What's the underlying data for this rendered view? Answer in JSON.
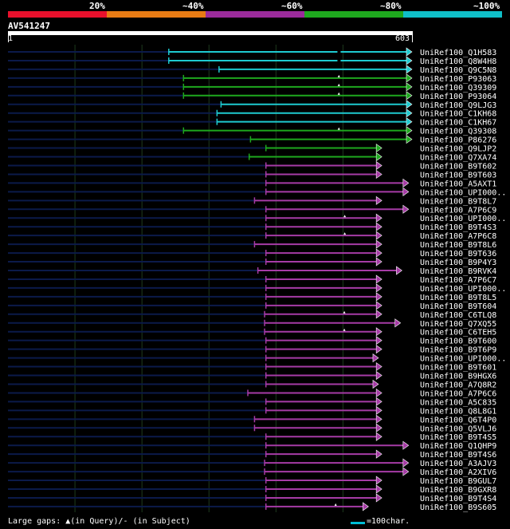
{
  "legend": {
    "segments": [
      {
        "color": "#e8102c"
      },
      {
        "color": "#e87b14"
      },
      {
        "color": "#9b2b9b"
      },
      {
        "color": "#1ea81e"
      },
      {
        "color": "#0fbfc8"
      }
    ],
    "labels": [
      "20%",
      "~40%",
      "~60%",
      "~80%",
      "~100%"
    ]
  },
  "query": {
    "name": "AV541247",
    "start": "1",
    "end": "603",
    "length": 603
  },
  "colors": {
    "cyan": "#1ecad0",
    "green": "#1ea81e",
    "purple": "#a63ba6",
    "dark": "#0b1a4a",
    "grid": "#1d3a1d"
  },
  "hits": [
    {
      "label": "UniRef100_Q1H583",
      "color": "cyan",
      "s": 240,
      "e": 603,
      "gap": "-"
    },
    {
      "label": "UniRef100_Q8W4H8",
      "color": "cyan",
      "s": 240,
      "e": 603,
      "gap": "-"
    },
    {
      "label": "UniRef100_Q9C5N8",
      "color": "cyan",
      "s": 315,
      "e": 603,
      "gap": ""
    },
    {
      "label": "UniRef100_P93063",
      "color": "green",
      "s": 262,
      "e": 603,
      "gap": "^"
    },
    {
      "label": "UniRef100_Q39309",
      "color": "green",
      "s": 262,
      "e": 603,
      "gap": "^"
    },
    {
      "label": "UniRef100_P93064",
      "color": "green",
      "s": 262,
      "e": 603,
      "gap": "^"
    },
    {
      "label": "UniRef100_Q9LJG3",
      "color": "cyan",
      "s": 318,
      "e": 603,
      "gap": ""
    },
    {
      "label": "UniRef100_C1KH68",
      "color": "cyan",
      "s": 312,
      "e": 603,
      "gap": ""
    },
    {
      "label": "UniRef100_C1KH67",
      "color": "cyan",
      "s": 312,
      "e": 603,
      "gap": ""
    },
    {
      "label": "UniRef100_Q39308",
      "color": "green",
      "s": 262,
      "e": 603,
      "gap": "^"
    },
    {
      "label": "UniRef100_P86276",
      "color": "green",
      "s": 362,
      "e": 603,
      "gap": ""
    },
    {
      "label": "UniRef100_Q9LJP2",
      "color": "green",
      "s": 385,
      "e": 558,
      "gap": ""
    },
    {
      "label": "UniRef100_Q7XA74",
      "color": "green",
      "s": 360,
      "e": 558,
      "gap": ""
    },
    {
      "label": "UniRef100_B9T602",
      "color": "purple",
      "s": 385,
      "e": 558,
      "gap": ""
    },
    {
      "label": "UniRef100_B9T603",
      "color": "purple",
      "s": 385,
      "e": 558,
      "gap": ""
    },
    {
      "label": "UniRef100_A5AXT1",
      "color": "purple",
      "s": 385,
      "e": 598,
      "gap": ""
    },
    {
      "label": "UniRef100_UPI000..",
      "color": "purple",
      "s": 385,
      "e": 598,
      "gap": ""
    },
    {
      "label": "UniRef100_B9T8L7",
      "color": "purple",
      "s": 368,
      "e": 558,
      "gap": ""
    },
    {
      "label": "UniRef100_A7P6C9",
      "color": "purple",
      "s": 385,
      "e": 598,
      "gap": ""
    },
    {
      "label": "UniRef100_UPI000..",
      "color": "purple",
      "s": 385,
      "e": 558,
      "gap": "^"
    },
    {
      "label": "UniRef100_B9T4S3",
      "color": "purple",
      "s": 385,
      "e": 558,
      "gap": ""
    },
    {
      "label": "UniRef100_A7P6C8",
      "color": "purple",
      "s": 385,
      "e": 558,
      "gap": "^"
    },
    {
      "label": "UniRef100_B9T8L6",
      "color": "purple",
      "s": 368,
      "e": 558,
      "gap": ""
    },
    {
      "label": "UniRef100_B9T636",
      "color": "purple",
      "s": 385,
      "e": 558,
      "gap": ""
    },
    {
      "label": "UniRef100_B9P4Y3",
      "color": "purple",
      "s": 385,
      "e": 558,
      "gap": ""
    },
    {
      "label": "UniRef100_B9RVK4",
      "color": "purple",
      "s": 373,
      "e": 588,
      "gap": ""
    },
    {
      "label": "UniRef100_A7P6C7",
      "color": "purple",
      "s": 385,
      "e": 558,
      "gap": ""
    },
    {
      "label": "UniRef100_UPI000..",
      "color": "purple",
      "s": 385,
      "e": 558,
      "gap": ""
    },
    {
      "label": "UniRef100_B9T8L5",
      "color": "purple",
      "s": 385,
      "e": 558,
      "gap": ""
    },
    {
      "label": "UniRef100_B9T604",
      "color": "purple",
      "s": 385,
      "e": 558,
      "gap": ""
    },
    {
      "label": "UniRef100_C6TLQ8",
      "color": "purple",
      "s": 383,
      "e": 558,
      "gap": "^"
    },
    {
      "label": "UniRef100_Q7XQ55",
      "color": "purple",
      "s": 383,
      "e": 586,
      "gap": ""
    },
    {
      "label": "UniRef100_C6TEH5",
      "color": "purple",
      "s": 383,
      "e": 558,
      "gap": "^"
    },
    {
      "label": "UniRef100_B9T600",
      "color": "purple",
      "s": 385,
      "e": 558,
      "gap": ""
    },
    {
      "label": "UniRef100_B9T6P9",
      "color": "purple",
      "s": 385,
      "e": 558,
      "gap": ""
    },
    {
      "label": "UniRef100_UPI000..",
      "color": "purple",
      "s": 385,
      "e": 553,
      "gap": ""
    },
    {
      "label": "UniRef100_B9T601",
      "color": "purple",
      "s": 385,
      "e": 558,
      "gap": ""
    },
    {
      "label": "UniRef100_B9HGX6",
      "color": "purple",
      "s": 385,
      "e": 558,
      "gap": ""
    },
    {
      "label": "UniRef100_A7Q8R2",
      "color": "purple",
      "s": 385,
      "e": 553,
      "gap": ""
    },
    {
      "label": "UniRef100_A7P6C6",
      "color": "purple",
      "s": 358,
      "e": 558,
      "gap": ""
    },
    {
      "label": "UniRef100_A5C835",
      "color": "purple",
      "s": 385,
      "e": 558,
      "gap": ""
    },
    {
      "label": "UniRef100_Q8L8G1",
      "color": "purple",
      "s": 385,
      "e": 558,
      "gap": ""
    },
    {
      "label": "UniRef100_Q6T4P0",
      "color": "purple",
      "s": 368,
      "e": 558,
      "gap": ""
    },
    {
      "label": "UniRef100_Q5VLJ6",
      "color": "purple",
      "s": 368,
      "e": 558,
      "gap": ""
    },
    {
      "label": "UniRef100_B9T4S5",
      "color": "purple",
      "s": 385,
      "e": 558,
      "gap": ""
    },
    {
      "label": "UniRef100_Q1QHP9",
      "color": "purple",
      "s": 385,
      "e": 598,
      "gap": ""
    },
    {
      "label": "UniRef100_B9T4S6",
      "color": "purple",
      "s": 385,
      "e": 558,
      "gap": ""
    },
    {
      "label": "UniRef100_A3AJV3",
      "color": "purple",
      "s": 383,
      "e": 598,
      "gap": ""
    },
    {
      "label": "UniRef100_A2XIV6",
      "color": "purple",
      "s": 383,
      "e": 598,
      "gap": ""
    },
    {
      "label": "UniRef100_B9GUL7",
      "color": "purple",
      "s": 385,
      "e": 558,
      "gap": ""
    },
    {
      "label": "UniRef100_B9GXR8",
      "color": "purple",
      "s": 385,
      "e": 558,
      "gap": ""
    },
    {
      "label": "UniRef100_B9T4S4",
      "color": "purple",
      "s": 385,
      "e": 558,
      "gap": ""
    },
    {
      "label": "UniRef100_B9S605",
      "color": "purple",
      "s": 385,
      "e": 538,
      "gap": "^"
    }
  ],
  "footer": {
    "gaps_text": "Large gaps: ▲(in Query)/- (in Subject)",
    "scale_text": "=100char."
  }
}
